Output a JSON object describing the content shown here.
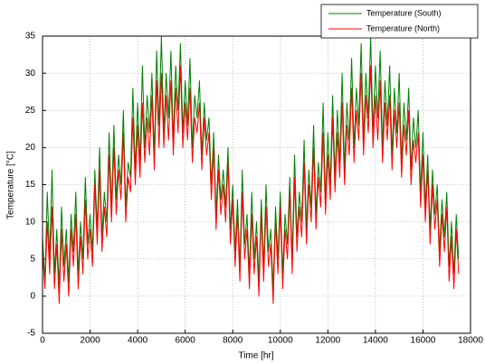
{
  "chart_data": {
    "type": "line",
    "xlabel": "Time [hr]",
    "ylabel": "Temperature [°C]",
    "x": [
      0,
      100,
      200,
      300,
      400,
      500,
      600,
      700,
      800,
      900,
      1000,
      1100,
      1200,
      1300,
      1400,
      1500,
      1600,
      1700,
      1800,
      1900,
      2000,
      2100,
      2200,
      2300,
      2400,
      2500,
      2600,
      2700,
      2800,
      2900,
      3000,
      3100,
      3200,
      3300,
      3400,
      3500,
      3600,
      3700,
      3800,
      3900,
      4000,
      4100,
      4200,
      4300,
      4400,
      4500,
      4600,
      4700,
      4800,
      4900,
      5000,
      5100,
      5200,
      5300,
      5400,
      5500,
      5600,
      5700,
      5800,
      5900,
      6000,
      6100,
      6200,
      6300,
      6400,
      6500,
      6600,
      6700,
      6800,
      6900,
      7000,
      7100,
      7200,
      7300,
      7400,
      7500,
      7600,
      7700,
      7800,
      7900,
      8000,
      8100,
      8200,
      8300,
      8400,
      8500,
      8600,
      8700,
      8800,
      8900,
      9000,
      9100,
      9200,
      9300,
      9400,
      9500,
      9600,
      9700,
      9800,
      9900,
      10000,
      10100,
      10200,
      10300,
      10400,
      10500,
      10600,
      10700,
      10800,
      10900,
      11000,
      11100,
      11200,
      11300,
      11400,
      11500,
      11600,
      11700,
      11800,
      11900,
      12000,
      12100,
      12200,
      12300,
      12400,
      12500,
      12600,
      12700,
      12800,
      12900,
      13000,
      13100,
      13200,
      13300,
      13400,
      13500,
      13600,
      13700,
      13800,
      13900,
      14000,
      14100,
      14200,
      14300,
      14400,
      14500,
      14600,
      14700,
      14800,
      14900,
      15000,
      15100,
      15200,
      15300,
      15400,
      15500,
      15600,
      15700,
      15800,
      15900,
      16000,
      16100,
      16200,
      16300,
      16400,
      16500,
      16600,
      16700,
      16800,
      16900,
      17000,
      17100,
      17200,
      17300,
      17400,
      17500
    ],
    "series": [
      {
        "name": "Temperature (South)",
        "color": "#008000",
        "values": [
          8,
          2,
          14,
          5,
          17,
          3,
          9,
          1,
          12,
          4,
          9,
          2,
          11,
          6,
          14,
          3,
          10,
          5,
          16,
          7,
          11,
          6,
          17,
          9,
          20,
          8,
          14,
          10,
          22,
          12,
          23,
          13,
          19,
          15,
          25,
          12,
          18,
          16,
          28,
          17,
          26,
          18,
          31,
          20,
          27,
          22,
          30,
          19,
          33,
          23,
          35,
          22,
          30,
          24,
          33,
          21,
          31,
          25,
          34,
          22,
          29,
          23,
          32,
          20,
          27,
          24,
          29,
          19,
          26,
          21,
          24,
          15,
          22,
          11,
          19,
          13,
          17,
          12,
          20,
          9,
          15,
          6,
          13,
          4,
          17,
          7,
          11,
          3,
          14,
          5,
          10,
          2,
          13,
          4,
          15,
          6,
          9,
          1,
          12,
          5,
          14,
          3,
          11,
          7,
          16,
          5,
          19,
          8,
          14,
          10,
          21,
          9,
          17,
          12,
          23,
          11,
          18,
          14,
          26,
          13,
          22,
          15,
          27,
          16,
          25,
          18,
          30,
          17,
          26,
          21,
          32,
          20,
          28,
          23,
          34,
          21,
          30,
          24,
          35,
          22,
          31,
          24,
          33,
          20,
          29,
          23,
          31,
          19,
          28,
          22,
          30,
          18,
          26,
          21,
          28,
          17,
          24,
          20,
          25,
          14,
          22,
          12,
          19,
          9,
          17,
          11,
          15,
          6,
          13,
          8,
          14,
          4,
          10,
          3,
          11,
          5
        ]
      },
      {
        "name": "Temperature (North)",
        "color": "#ff0000",
        "values": [
          6,
          1,
          10,
          3,
          12,
          1,
          7,
          -1,
          9,
          2,
          7,
          0,
          9,
          4,
          11,
          1,
          8,
          3,
          13,
          5,
          9,
          4,
          15,
          7,
          17,
          6,
          12,
          8,
          19,
          10,
          20,
          11,
          17,
          13,
          22,
          10,
          16,
          14,
          24,
          15,
          23,
          16,
          26,
          18,
          24,
          19,
          27,
          17,
          29,
          20,
          30,
          20,
          27,
          21,
          29,
          19,
          28,
          22,
          31,
          20,
          26,
          21,
          28,
          18,
          24,
          22,
          26,
          17,
          24,
          19,
          22,
          13,
          20,
          9,
          17,
          11,
          15,
          10,
          18,
          7,
          13,
          4,
          11,
          2,
          14,
          5,
          9,
          1,
          11,
          3,
          8,
          0,
          11,
          2,
          12,
          4,
          7,
          -1,
          10,
          3,
          12,
          1,
          9,
          5,
          14,
          3,
          16,
          6,
          12,
          8,
          18,
          7,
          15,
          10,
          20,
          9,
          16,
          12,
          22,
          11,
          19,
          13,
          24,
          14,
          22,
          16,
          26,
          15,
          23,
          19,
          28,
          18,
          25,
          21,
          30,
          19,
          27,
          22,
          31,
          20,
          27,
          21,
          29,
          18,
          26,
          21,
          27,
          17,
          25,
          20,
          26,
          16,
          23,
          19,
          25,
          15,
          21,
          18,
          22,
          12,
          19,
          10,
          17,
          7,
          15,
          9,
          13,
          4,
          11,
          6,
          12,
          2,
          8,
          1,
          9,
          3
        ]
      }
    ],
    "xlim": [
      0,
      18000
    ],
    "xticks": [
      0,
      2000,
      4000,
      6000,
      8000,
      10000,
      12000,
      14000,
      16000,
      18000
    ],
    "ylim": [
      -5,
      35
    ],
    "yticks": [
      -5,
      0,
      5,
      10,
      15,
      20,
      25,
      30,
      35
    ],
    "grid": true,
    "legend": "top-right"
  }
}
